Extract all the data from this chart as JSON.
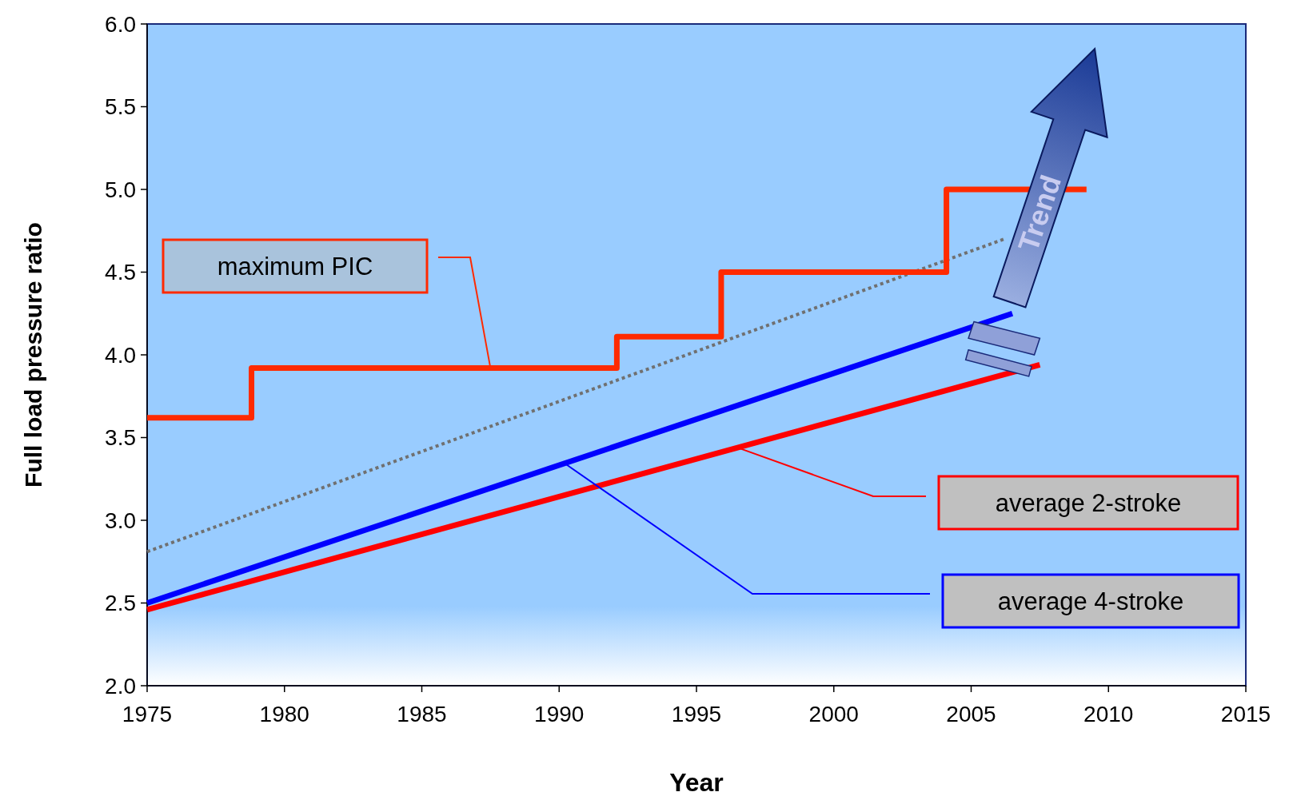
{
  "chart_data": {
    "type": "line",
    "xlabel": "Year",
    "ylabel": "Full load pressure ratio",
    "xlim": [
      1975,
      2015
    ],
    "xticks": [
      1975,
      1980,
      1985,
      1990,
      1995,
      2000,
      2005,
      2010,
      2015
    ],
    "ylim": [
      2.0,
      6.0
    ],
    "yticks": [
      {
        "value": 2.0,
        "label": "2.0"
      },
      {
        "value": 2.5,
        "label": "2.5"
      },
      {
        "value": 3.0,
        "label": "3.0"
      },
      {
        "value": 3.5,
        "label": "3.5"
      },
      {
        "value": 4.0,
        "label": "4.0"
      },
      {
        "value": 4.5,
        "label": "4.5"
      },
      {
        "value": 5.0,
        "label": "5.0"
      },
      {
        "value": 5.5,
        "label": "5.5"
      },
      {
        "value": 6.0,
        "label": "6.0"
      }
    ],
    "grid": false,
    "legend": false,
    "series": [
      {
        "type": "step",
        "name": "maximum PIC",
        "color": "#ff2a00",
        "x": [
          1975,
          1978.8,
          1992.1,
          1995.9,
          2004.1,
          2009.2
        ],
        "values": [
          3.62,
          3.92,
          4.11,
          4.5,
          5.0,
          5.0
        ]
      },
      {
        "name": "average 2-stroke",
        "color": "#ff0000",
        "x": [
          1975,
          2007.5
        ],
        "values": [
          2.46,
          3.94
        ]
      },
      {
        "name": "average 4-stroke",
        "color": "#0000ff",
        "x": [
          1975,
          2006.5
        ],
        "values": [
          2.5,
          4.25
        ]
      },
      {
        "color": "#707070",
        "line_style": "dotted",
        "x": [
          1975,
          2006.2
        ],
        "values": [
          2.81,
          4.7
        ]
      }
    ],
    "annotations": [
      "Trend"
    ]
  }
}
